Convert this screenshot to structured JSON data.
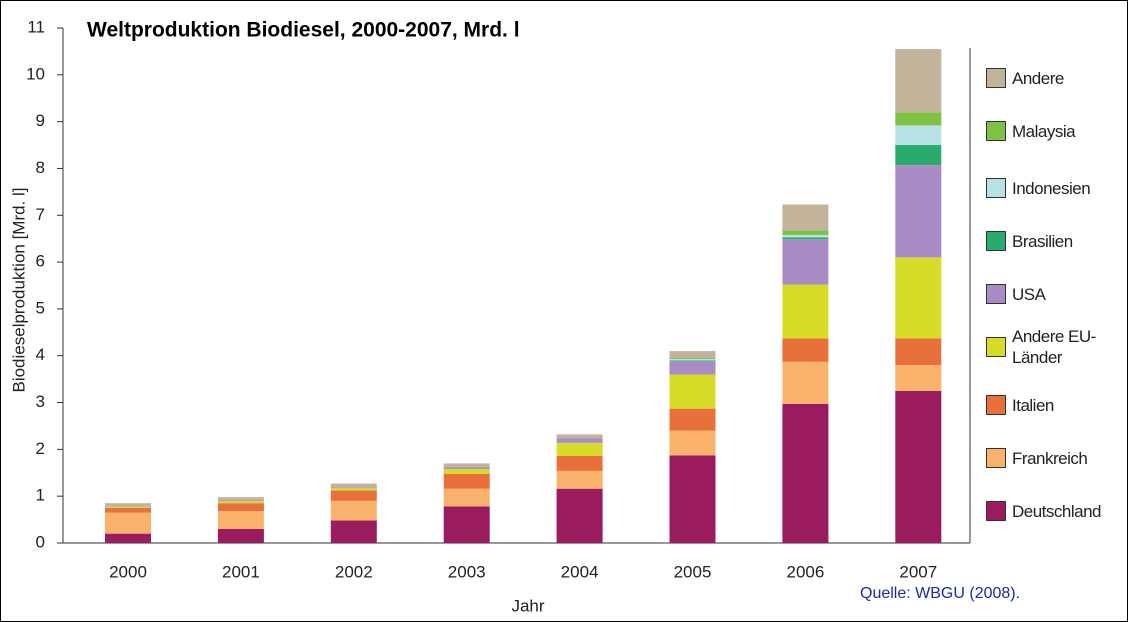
{
  "chart_data": {
    "type": "stacked_bar",
    "title": "Weltproduktion Biodiesel, 2000-2007, Mrd. l",
    "y_label": "Biodieselproduktion [Mrd. l]",
    "x_label": "Jahr",
    "source": "Quelle: WBGU (2008).",
    "categories": [
      "2000",
      "2001",
      "2002",
      "2003",
      "2004",
      "2005",
      "2006",
      "2007"
    ],
    "ylim": [
      0,
      11
    ],
    "yticks": [
      0,
      1,
      2,
      3,
      4,
      5,
      6,
      7,
      8,
      9,
      10,
      11
    ],
    "legend": "right",
    "series": [
      {
        "name": "Deutschland",
        "color": "#9b1b5f",
        "values": [
          0.2,
          0.3,
          0.48,
          0.78,
          1.16,
          1.87,
          2.97,
          3.25
        ]
      },
      {
        "name": "Frankreich",
        "color": "#f9b26c",
        "values": [
          0.45,
          0.38,
          0.42,
          0.38,
          0.38,
          0.53,
          0.9,
          0.55
        ]
      },
      {
        "name": "Italien",
        "color": "#e8703a",
        "values": [
          0.1,
          0.17,
          0.22,
          0.32,
          0.32,
          0.47,
          0.5,
          0.57
        ]
      },
      {
        "name": "Andere EU-Länder",
        "color": "#d6dc28",
        "values": [
          0.02,
          0.05,
          0.05,
          0.1,
          0.28,
          0.73,
          1.15,
          1.73
        ]
      },
      {
        "name": "USA",
        "color": "#a98cc6",
        "values": [
          0,
          0.02,
          0.02,
          0.04,
          0.1,
          0.28,
          0.97,
          1.97
        ]
      },
      {
        "name": "Brasilien",
        "color": "#2aab6e",
        "values": [
          0,
          0,
          0,
          0,
          0,
          0.02,
          0.04,
          0.43
        ]
      },
      {
        "name": "Indonesien",
        "color": "#b8e2e6",
        "values": [
          0,
          0,
          0,
          0,
          0,
          0.03,
          0.05,
          0.42
        ]
      },
      {
        "name": "Malaysia",
        "color": "#7dc242",
        "values": [
          0,
          0,
          0,
          0,
          0,
          0.02,
          0.1,
          0.28
        ]
      },
      {
        "name": "Andere",
        "color": "#c2b49a",
        "values": [
          0.08,
          0.06,
          0.08,
          0.08,
          0.08,
          0.15,
          0.55,
          1.35
        ]
      }
    ]
  }
}
